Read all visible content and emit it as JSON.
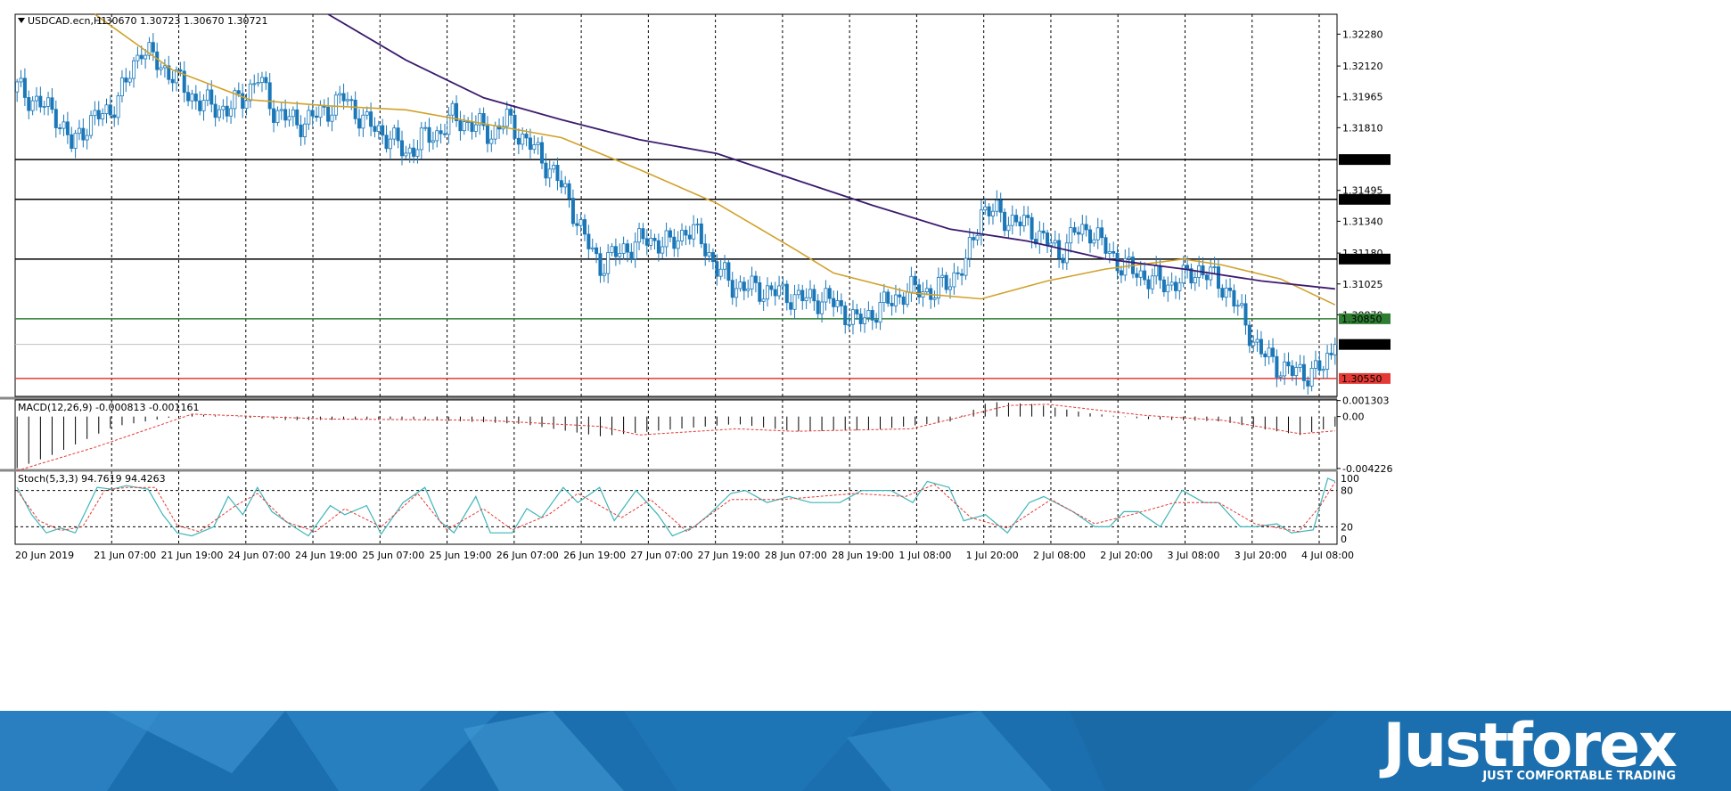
{
  "chart_data": {
    "type": "candlestick",
    "symbol_label": "USDCAD.ecn,H1",
    "ohlc_label": "1.30670 1.30723 1.30670 1.30721",
    "price_ticks": [
      "1.32280",
      "1.32120",
      "1.31965",
      "1.31810",
      "1.31495",
      "1.31340",
      "1.31180",
      "1.31025",
      "1.30870"
    ],
    "price_tick_values": [
      1.3228,
      1.3212,
      1.31965,
      1.3181,
      1.31495,
      1.3134,
      1.3118,
      1.31025,
      1.3087
    ],
    "ylim": [
      1.3046,
      1.3238
    ],
    "time_labels": [
      "20 Jun 2019",
      "21 Jun 07:00",
      "21 Jun 19:00",
      "24 Jun 07:00",
      "24 Jun 19:00",
      "25 Jun 07:00",
      "25 Jun 19:00",
      "26 Jun 07:00",
      "26 Jun 19:00",
      "27 Jun 07:00",
      "27 Jun 19:00",
      "28 Jun 07:00",
      "28 Jun 19:00",
      "1 Jul 08:00",
      "1 Jul 20:00",
      "2 Jul 08:00",
      "2 Jul 20:00",
      "3 Jul 08:00",
      "3 Jul 20:00",
      "4 Jul 08:00"
    ],
    "levels": [
      {
        "value": 1.3165,
        "label": "1.31650",
        "color": "#000000"
      },
      {
        "value": 1.3145,
        "label": "1.31450",
        "color": "#000000"
      },
      {
        "value": 1.3115,
        "label": "1.31150",
        "color": "#000000"
      },
      {
        "value": 1.3085,
        "label": "1.30850",
        "color": "#2e7d32"
      },
      {
        "value": 1.3055,
        "label": "1.30550",
        "color": "#e53935"
      }
    ],
    "current_price": {
      "value": 1.30721,
      "label": "1.30721"
    },
    "candle_color": "#1a77b8",
    "ma_fast_color": "#d1a12a",
    "ma_slow_color": "#3c1b6e",
    "close_path": [
      [
        0,
        1.3201
      ],
      [
        4,
        1.3195
      ],
      [
        10,
        1.3188
      ],
      [
        14,
        1.3172
      ],
      [
        18,
        1.3183
      ],
      [
        24,
        1.319
      ],
      [
        28,
        1.3203
      ],
      [
        32,
        1.3222
      ],
      [
        36,
        1.3213
      ],
      [
        40,
        1.3208
      ],
      [
        44,
        1.3198
      ],
      [
        48,
        1.3193
      ],
      [
        54,
        1.319
      ],
      [
        58,
        1.3196
      ],
      [
        62,
        1.3206
      ],
      [
        66,
        1.319
      ],
      [
        72,
        1.3183
      ],
      [
        78,
        1.3188
      ],
      [
        84,
        1.3196
      ],
      [
        90,
        1.3183
      ],
      [
        96,
        1.3176
      ],
      [
        100,
        1.3168
      ],
      [
        104,
        1.3175
      ],
      [
        108,
        1.3178
      ],
      [
        112,
        1.3186
      ],
      [
        118,
        1.3182
      ],
      [
        122,
        1.3178
      ],
      [
        126,
        1.3185
      ],
      [
        130,
        1.3176
      ],
      [
        134,
        1.3168
      ],
      [
        138,
        1.3158
      ],
      [
        142,
        1.3145
      ],
      [
        146,
        1.3125
      ],
      [
        150,
        1.3112
      ],
      [
        156,
        1.312
      ],
      [
        162,
        1.3125
      ],
      [
        168,
        1.3122
      ],
      [
        172,
        1.313
      ],
      [
        176,
        1.3125
      ],
      [
        180,
        1.311
      ],
      [
        184,
        1.3102
      ],
      [
        190,
        1.31
      ],
      [
        196,
        1.3098
      ],
      [
        202,
        1.3095
      ],
      [
        208,
        1.3095
      ],
      [
        212,
        1.309
      ],
      [
        216,
        1.3083
      ],
      [
        220,
        1.3088
      ],
      [
        224,
        1.3093
      ],
      [
        228,
        1.3098
      ],
      [
        232,
        1.31
      ],
      [
        236,
        1.3098
      ],
      [
        240,
        1.3105
      ],
      [
        244,
        1.3112
      ],
      [
        248,
        1.314
      ],
      [
        252,
        1.3138
      ],
      [
        256,
        1.3134
      ],
      [
        260,
        1.3132
      ],
      [
        264,
        1.3125
      ],
      [
        268,
        1.3118
      ],
      [
        272,
        1.3128
      ],
      [
        276,
        1.313
      ],
      [
        280,
        1.312
      ],
      [
        284,
        1.3112
      ],
      [
        288,
        1.3108
      ],
      [
        292,
        1.3105
      ],
      [
        296,
        1.3102
      ],
      [
        300,
        1.3105
      ],
      [
        304,
        1.311
      ],
      [
        308,
        1.3105
      ],
      [
        312,
        1.3098
      ],
      [
        316,
        1.3082
      ],
      [
        320,
        1.3068
      ],
      [
        324,
        1.3062
      ],
      [
        328,
        1.3058
      ],
      [
        332,
        1.3058
      ],
      [
        336,
        1.306
      ],
      [
        339,
        1.30721
      ]
    ],
    "ma_fast_path": [
      [
        20,
        1.3238
      ],
      [
        40,
        1.321
      ],
      [
        60,
        1.3195
      ],
      [
        80,
        1.3192
      ],
      [
        100,
        1.319
      ],
      [
        120,
        1.3183
      ],
      [
        140,
        1.3176
      ],
      [
        160,
        1.316
      ],
      [
        180,
        1.3143
      ],
      [
        200,
        1.312
      ],
      [
        210,
        1.3108
      ],
      [
        230,
        1.3098
      ],
      [
        248,
        1.3095
      ],
      [
        265,
        1.3104
      ],
      [
        280,
        1.311
      ],
      [
        300,
        1.3115
      ],
      [
        310,
        1.3112
      ],
      [
        325,
        1.3105
      ],
      [
        339,
        1.3092
      ]
    ],
    "ma_slow_path": [
      [
        80,
        1.3238
      ],
      [
        100,
        1.3215
      ],
      [
        120,
        1.3196
      ],
      [
        140,
        1.3185
      ],
      [
        160,
        1.3175
      ],
      [
        180,
        1.3168
      ],
      [
        200,
        1.3155
      ],
      [
        220,
        1.3142
      ],
      [
        240,
        1.313
      ],
      [
        260,
        1.3124
      ],
      [
        280,
        1.3115
      ],
      [
        300,
        1.311
      ],
      [
        320,
        1.3104
      ],
      [
        339,
        1.31
      ]
    ],
    "macd": {
      "label": "MACD(12,26,9) -0.000813 -0.001161",
      "ticks": [
        "0.001303",
        "0.00",
        "-0.004226"
      ],
      "tick_values": [
        0.001303,
        0.0,
        -0.004226
      ],
      "ylim": [
        -0.0043,
        0.00135
      ],
      "hist_path": [
        [
          0,
          -0.0042
        ],
        [
          10,
          -0.003
        ],
        [
          25,
          -0.0008
        ],
        [
          45,
          0.0002
        ],
        [
          70,
          -0.0003
        ],
        [
          100,
          -0.0002
        ],
        [
          130,
          -0.0006
        ],
        [
          150,
          -0.0016
        ],
        [
          170,
          -0.001
        ],
        [
          185,
          -0.0006
        ],
        [
          200,
          -0.0012
        ],
        [
          220,
          -0.0011
        ],
        [
          240,
          -0.0004
        ],
        [
          250,
          0.0012
        ],
        [
          262,
          0.001
        ],
        [
          275,
          0.0003
        ],
        [
          290,
          -0.0002
        ],
        [
          310,
          -0.0004
        ],
        [
          320,
          -0.001
        ],
        [
          330,
          -0.0015
        ],
        [
          339,
          -0.000813
        ]
      ],
      "signal_path": [
        [
          0,
          -0.0044
        ],
        [
          20,
          -0.0025
        ],
        [
          45,
          0.0002
        ],
        [
          80,
          -0.0002
        ],
        [
          120,
          -0.0003
        ],
        [
          150,
          -0.0008
        ],
        [
          160,
          -0.0015
        ],
        [
          185,
          -0.001
        ],
        [
          200,
          -0.0012
        ],
        [
          230,
          -0.001
        ],
        [
          255,
          0.0009
        ],
        [
          265,
          0.001
        ],
        [
          290,
          0.0001
        ],
        [
          310,
          -0.0003
        ],
        [
          330,
          -0.0014
        ],
        [
          339,
          -0.001161
        ]
      ],
      "hist_color": "#000000",
      "signal_color": "#e53935"
    },
    "stoch": {
      "label": "Stoch(5,3,3) 94.7619 94.4263",
      "ticks": [
        "100",
        "80",
        "20",
        "0"
      ],
      "tick_values": [
        100,
        80,
        20,
        0
      ],
      "levels": [
        80,
        20
      ],
      "k_color": "#3fb5b8",
      "d_color": "#e53935",
      "k_path": [
        [
          0,
          85
        ],
        [
          4,
          40
        ],
        [
          8,
          10
        ],
        [
          12,
          18
        ],
        [
          16,
          10
        ],
        [
          22,
          85
        ],
        [
          26,
          82
        ],
        [
          30,
          88
        ],
        [
          36,
          82
        ],
        [
          40,
          40
        ],
        [
          44,
          10
        ],
        [
          48,
          5
        ],
        [
          54,
          20
        ],
        [
          58,
          70
        ],
        [
          62,
          40
        ],
        [
          66,
          85
        ],
        [
          70,
          45
        ],
        [
          76,
          20
        ],
        [
          80,
          5
        ],
        [
          86,
          55
        ],
        [
          90,
          40
        ],
        [
          96,
          55
        ],
        [
          100,
          8
        ],
        [
          106,
          60
        ],
        [
          112,
          85
        ],
        [
          116,
          30
        ],
        [
          120,
          10
        ],
        [
          126,
          70
        ],
        [
          130,
          10
        ],
        [
          136,
          10
        ],
        [
          140,
          50
        ],
        [
          144,
          35
        ],
        [
          150,
          85
        ],
        [
          154,
          60
        ],
        [
          160,
          85
        ],
        [
          164,
          30
        ],
        [
          170,
          80
        ],
        [
          176,
          40
        ],
        [
          180,
          5
        ],
        [
          186,
          20
        ],
        [
          190,
          40
        ],
        [
          196,
          75
        ],
        [
          200,
          80
        ],
        [
          206,
          60
        ],
        [
          212,
          70
        ],
        [
          218,
          60
        ],
        [
          226,
          60
        ],
        [
          232,
          80
        ],
        [
          240,
          80
        ],
        [
          246,
          60
        ],
        [
          250,
          95
        ],
        [
          256,
          85
        ],
        [
          260,
          30
        ],
        [
          266,
          40
        ],
        [
          272,
          10
        ],
        [
          278,
          60
        ],
        [
          282,
          70
        ],
        [
          290,
          45
        ],
        [
          296,
          20
        ],
        [
          300,
          20
        ],
        [
          304,
          45
        ],
        [
          308,
          45
        ],
        [
          314,
          20
        ],
        [
          320,
          80
        ],
        [
          326,
          60
        ],
        [
          330,
          60
        ],
        [
          336,
          20
        ],
        [
          340,
          20
        ],
        [
          346,
          25
        ],
        [
          350,
          10
        ],
        [
          356,
          15
        ],
        [
          360,
          100
        ],
        [
          362,
          95
        ]
      ],
      "d_path": [
        [
          0,
          80
        ],
        [
          6,
          30
        ],
        [
          12,
          14
        ],
        [
          18,
          20
        ],
        [
          24,
          80
        ],
        [
          30,
          85
        ],
        [
          38,
          85
        ],
        [
          44,
          22
        ],
        [
          50,
          12
        ],
        [
          60,
          55
        ],
        [
          66,
          75
        ],
        [
          74,
          28
        ],
        [
          82,
          12
        ],
        [
          90,
          50
        ],
        [
          100,
          20
        ],
        [
          110,
          75
        ],
        [
          118,
          15
        ],
        [
          128,
          50
        ],
        [
          136,
          15
        ],
        [
          146,
          40
        ],
        [
          154,
          75
        ],
        [
          166,
          35
        ],
        [
          174,
          65
        ],
        [
          184,
          12
        ],
        [
          196,
          65
        ],
        [
          210,
          65
        ],
        [
          230,
          75
        ],
        [
          244,
          70
        ],
        [
          252,
          90
        ],
        [
          262,
          35
        ],
        [
          272,
          18
        ],
        [
          284,
          65
        ],
        [
          296,
          25
        ],
        [
          306,
          40
        ],
        [
          318,
          60
        ],
        [
          330,
          60
        ],
        [
          340,
          25
        ],
        [
          352,
          12
        ],
        [
          358,
          55
        ],
        [
          362,
          94
        ]
      ]
    }
  },
  "branding": {
    "name": "Justforex",
    "tagline": "JUST COMFORTABLE TRADING"
  }
}
